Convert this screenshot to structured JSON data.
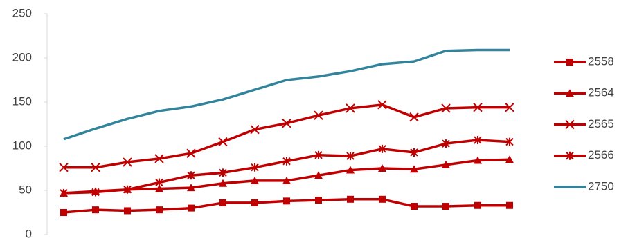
{
  "chart_data": {
    "type": "line",
    "categories": [
      null,
      null,
      null,
      null,
      null,
      null,
      null,
      null,
      null,
      null,
      null,
      null,
      null,
      null,
      null
    ],
    "ylim": [
      0,
      250
    ],
    "yticks": [
      0,
      50,
      100,
      150,
      200,
      250
    ],
    "grid": false,
    "legend": "right",
    "series": [
      {
        "name": "2558",
        "color": "#c00000",
        "marker": "square",
        "values": [
          25,
          28,
          27,
          28,
          30,
          36,
          36,
          38,
          39,
          40,
          40,
          32,
          32,
          33,
          33
        ]
      },
      {
        "name": "2564",
        "color": "#c00000",
        "marker": "triangle",
        "values": [
          47,
          49,
          51,
          52,
          53,
          58,
          61,
          61,
          67,
          73,
          75,
          74,
          79,
          84,
          85
        ]
      },
      {
        "name": "2565",
        "color": "#c00000",
        "marker": "x",
        "values": [
          76,
          76,
          82,
          86,
          92,
          105,
          119,
          126,
          135,
          143,
          147,
          133,
          143,
          144,
          144
        ]
      },
      {
        "name": "2566",
        "color": "#c00000",
        "marker": "star",
        "values": [
          47,
          48,
          51,
          59,
          67,
          70,
          76,
          83,
          90,
          89,
          97,
          93,
          103,
          107,
          105
        ]
      },
      {
        "name": "2750",
        "color": "#31849b",
        "marker": "none",
        "values": [
          108,
          120,
          131,
          140,
          145,
          153,
          164,
          175,
          179,
          185,
          193,
          196,
          208,
          209,
          209
        ]
      }
    ]
  }
}
